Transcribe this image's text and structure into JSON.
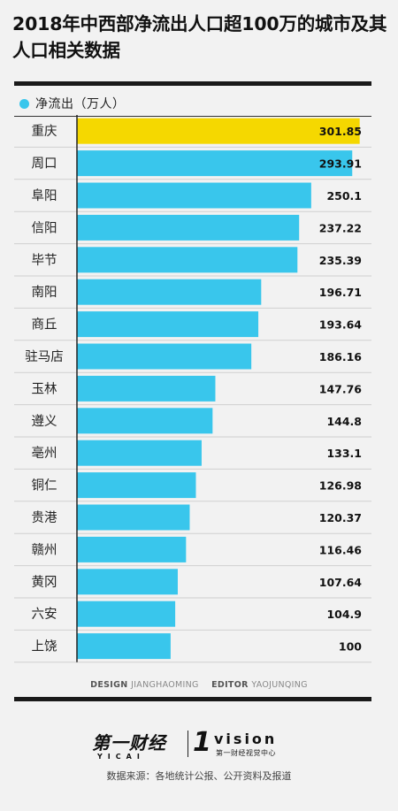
{
  "title": "2018年中西部净流出人口超100万的城市及其人口相关数据",
  "legend": {
    "label": "净流出（万人）",
    "color": "#39c6ec"
  },
  "colors": {
    "bar": "#39c6ec",
    "highlight": "#f5d800"
  },
  "chart_data": {
    "type": "bar",
    "orientation": "horizontal",
    "title": "2018年中西部净流出人口超100万的城市及其人口相关数据",
    "series": [
      {
        "name": "净流出（万人）"
      }
    ],
    "categories": [
      "重庆",
      "周口",
      "阜阳",
      "信阳",
      "毕节",
      "南阳",
      "商丘",
      "驻马店",
      "玉林",
      "遵义",
      "亳州",
      "铜仁",
      "贵港",
      "赣州",
      "黄冈",
      "六安",
      "上饶"
    ],
    "values": [
      301.85,
      293.91,
      250.1,
      237.22,
      235.39,
      196.71,
      193.64,
      186.16,
      147.76,
      144.8,
      133.1,
      126.98,
      120.37,
      116.46,
      107.64,
      104.9,
      100
    ],
    "value_labels": [
      "301.85",
      "293.91",
      "250.1",
      "237.22",
      "235.39",
      "196.71",
      "193.64",
      "186.16",
      "147.76",
      "144.8",
      "133.1",
      "126.98",
      "120.37",
      "116.46",
      "107.64",
      "104.9",
      "100"
    ],
    "highlight_index": 0,
    "xlim": [
      0,
      305
    ],
    "grid": false
  },
  "credits": {
    "design_role": "DESIGN",
    "design_name": "JIANGHAOMING",
    "editor_role": "EDITOR",
    "editor_name": "YAOJUNQING"
  },
  "logo": {
    "yicai_cn": "第一财经",
    "yicai_en": "YICAI",
    "vision_word": "vision",
    "vision_cn": "第一财经视觉中心"
  },
  "source": "数据来源：各地统计公报、公开资料及报道"
}
